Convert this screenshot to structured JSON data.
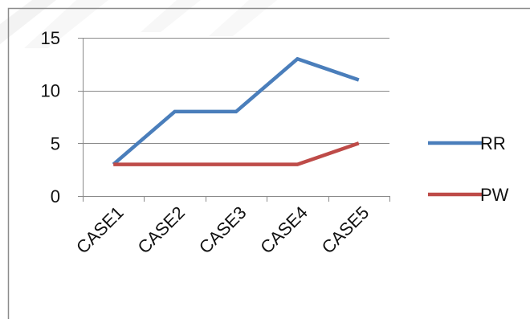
{
  "chart_data": {
    "type": "line",
    "categories": [
      "CASE1",
      "CASE2",
      "CASE3",
      "CASE4",
      "CASE5"
    ],
    "series": [
      {
        "name": "RR",
        "values": [
          3,
          8,
          8,
          13,
          11
        ],
        "color": "#4a7ebb"
      },
      {
        "name": "PW",
        "values": [
          3,
          3,
          3,
          3,
          5
        ],
        "color": "#be4b48"
      }
    ],
    "y_ticks": [
      0,
      5,
      10,
      15
    ],
    "ylim": [
      0,
      15
    ],
    "grid": "horizontal",
    "legend": "right"
  }
}
